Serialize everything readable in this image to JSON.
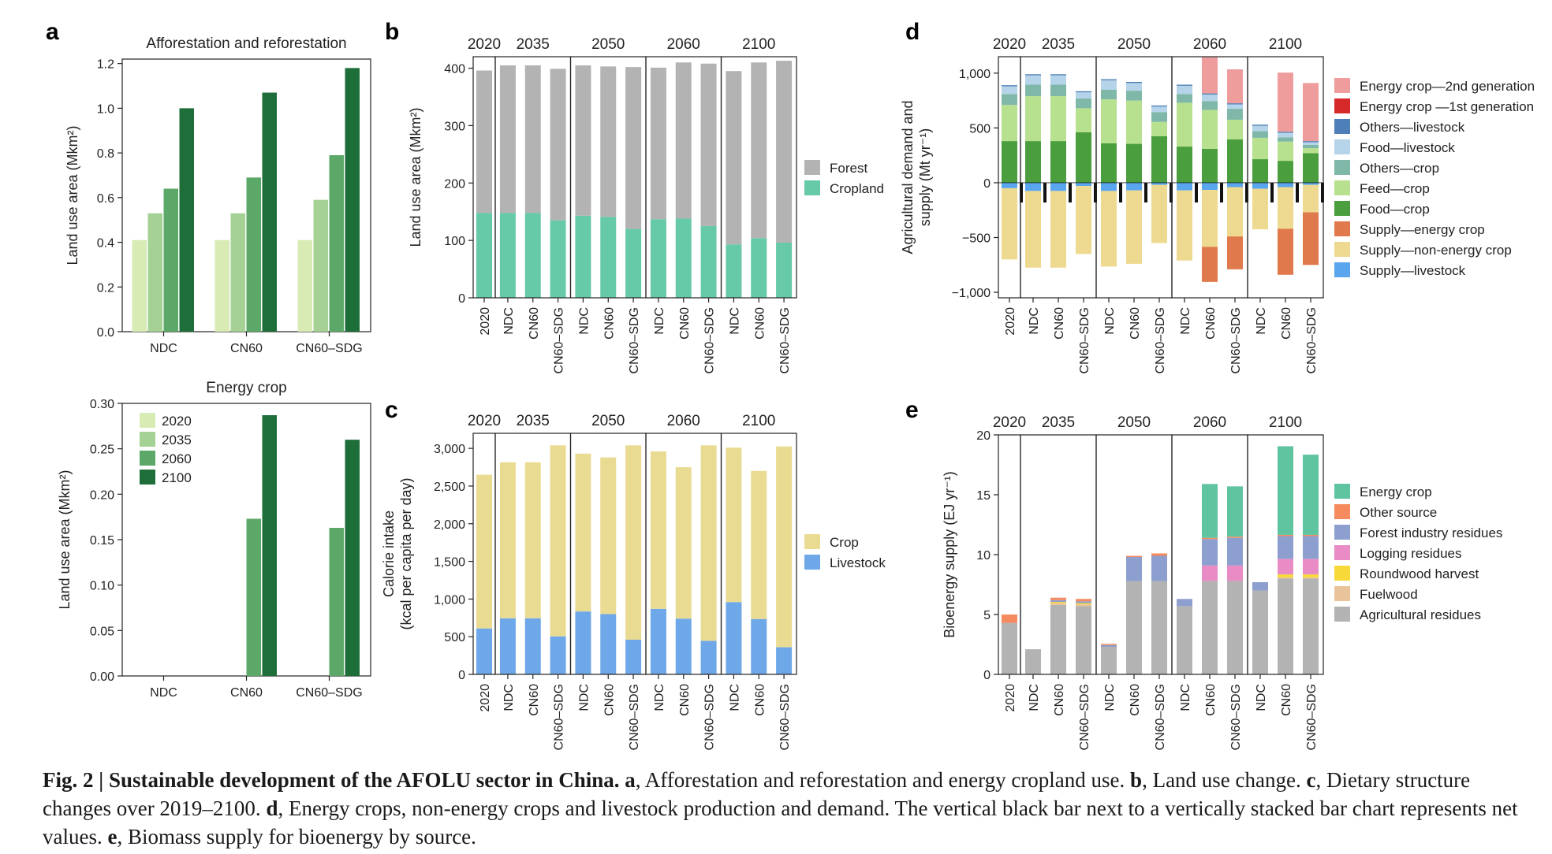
{
  "caption": {
    "head": "Fig. 2 | Sustainable development of the AFOLU sector in China.",
    "body": [
      {
        "b": "a",
        "t": ", Afforestation and reforestation and energy cropland use. "
      },
      {
        "b": "b",
        "t": ", Land use change. "
      },
      {
        "b": "c",
        "t": ", Dietary structure changes over 2019–2100. "
      },
      {
        "b": "d",
        "t": ", Energy crops, non-energy crops and livestock production and demand. The vertical black bar next to a vertically stacked bar chart represents net values. "
      },
      {
        "b": "e",
        "t": ", Biomass supply for bioenergy by source."
      }
    ]
  },
  "panel_letters": [
    "a",
    "b",
    "c",
    "d",
    "e"
  ],
  "chart_data": [
    {
      "id": "a1",
      "type": "bar",
      "title": "Afforestation and reforestation",
      "ylabel": "Land use area (Mkm²)",
      "ylim": [
        0,
        1.22
      ],
      "yticks": [
        0,
        0.2,
        0.4,
        0.6,
        0.8,
        1.0,
        1.2
      ],
      "decimals": 1,
      "categories": [
        "NDC",
        "CN60",
        "CN60–SDG"
      ],
      "series": [
        {
          "name": "2020",
          "color": "#d8ebb5",
          "values": [
            0.41,
            0.41,
            0.41
          ]
        },
        {
          "name": "2035",
          "color": "#a5d294",
          "values": [
            0.53,
            0.53,
            0.59
          ]
        },
        {
          "name": "2060",
          "color": "#5ca868",
          "values": [
            0.64,
            0.69,
            0.79
          ]
        },
        {
          "name": "2100",
          "color": "#1e6e3a",
          "values": [
            1.0,
            1.07,
            1.18
          ]
        }
      ]
    },
    {
      "id": "a2",
      "type": "bar",
      "title": "Energy crop",
      "ylabel": "Land use area (Mkm²)",
      "ylim": [
        0,
        0.3
      ],
      "yticks": [
        0,
        0.05,
        0.1,
        0.15,
        0.2,
        0.25,
        0.3
      ],
      "decimals": 2,
      "categories": [
        "NDC",
        "CN60",
        "CN60–SDG"
      ],
      "legend_position": "top-left",
      "series": [
        {
          "name": "2020",
          "color": "#d8ebb5",
          "values": [
            0,
            0,
            0
          ]
        },
        {
          "name": "2035",
          "color": "#a5d294",
          "values": [
            0,
            0,
            0
          ]
        },
        {
          "name": "2060",
          "color": "#5ca868",
          "values": [
            0,
            0.173,
            0.163
          ]
        },
        {
          "name": "2100",
          "color": "#1e6e3a",
          "values": [
            0,
            0.287,
            0.26
          ]
        }
      ]
    },
    {
      "id": "b",
      "type": "bar",
      "stacked": true,
      "ylabel": "Land use area (Mkm²)",
      "ylim": [
        0,
        420
      ],
      "yticks": [
        0,
        100,
        200,
        300,
        400
      ],
      "groups": [
        "2020",
        "2035",
        "2050",
        "2060",
        "2100"
      ],
      "categories": [
        "2020",
        "NDC",
        "CN60",
        "CN60–SDG",
        "NDC",
        "CN60",
        "CN60–SDG",
        "NDC",
        "CN60",
        "CN60–SDG",
        "NDC",
        "CN60",
        "CN60–SDG"
      ],
      "legend_position": "right",
      "series": [
        {
          "name": "Cropland",
          "color": "#66c9a8",
          "values": [
            148,
            148,
            148,
            135,
            143,
            141,
            120,
            137,
            138,
            125,
            93,
            104,
            96
          ]
        },
        {
          "name": "Forest",
          "color": "#b3b3b3",
          "values": [
            248,
            257,
            257,
            264,
            262,
            262,
            282,
            264,
            272,
            283,
            302,
            306,
            317
          ]
        }
      ],
      "legend_order": [
        "Forest",
        "Cropland"
      ]
    },
    {
      "id": "c",
      "type": "bar",
      "stacked": true,
      "ylabel": "Calorie intake",
      "ylabel2": "(kcal per capita per day)",
      "ylim": [
        0,
        3200
      ],
      "yticks": [
        0,
        500,
        1000,
        1500,
        2000,
        2500,
        3000
      ],
      "groups": [
        "2020",
        "2035",
        "2050",
        "2060",
        "2100"
      ],
      "categories": [
        "2020",
        "NDC",
        "CN60",
        "CN60–SDG",
        "NDC",
        "CN60",
        "CN60–SDG",
        "NDC",
        "CN60",
        "CN60–SDG",
        "NDC",
        "CN60",
        "CN60–SDG"
      ],
      "legend_position": "right",
      "series": [
        {
          "name": "Livestock",
          "color": "#6ea8e8",
          "values": [
            610,
            745,
            745,
            505,
            835,
            800,
            460,
            870,
            740,
            445,
            960,
            735,
            360
          ]
        },
        {
          "name": "Crop",
          "color": "#eadb93",
          "values": [
            2040,
            2070,
            2070,
            2535,
            2095,
            2080,
            2580,
            2090,
            2010,
            2595,
            2050,
            1965,
            2665
          ]
        }
      ],
      "legend_order": [
        "Crop",
        "Livestock"
      ]
    },
    {
      "id": "d",
      "type": "bar",
      "stacked": true,
      "ylabel": "Agricultural demand and",
      "ylabel2": "supply (Mt yr⁻¹)",
      "ylim": [
        -1050,
        1150
      ],
      "yticks": [
        -1000,
        -500,
        0,
        500,
        1000
      ],
      "groups": [
        "2020",
        "2035",
        "2050",
        "2060",
        "2100"
      ],
      "categories": [
        "2020",
        "NDC",
        "CN60",
        "CN60–SDG",
        "NDC",
        "CN60",
        "CN60–SDG",
        "NDC",
        "CN60",
        "CN60–SDG",
        "NDC",
        "CN60",
        "CN60–SDG"
      ],
      "legend_position": "right",
      "series": [
        {
          "name": "Food—crop",
          "color": "#4a9e3d",
          "values": [
            380,
            380,
            380,
            460,
            360,
            355,
            425,
            330,
            310,
            395,
            215,
            200,
            270
          ]
        },
        {
          "name": "Feed—crop",
          "color": "#b7e08f",
          "values": [
            330,
            410,
            410,
            220,
            400,
            395,
            130,
            400,
            355,
            180,
            195,
            175,
            45
          ]
        },
        {
          "name": "Others—crop",
          "color": "#7fb8a9",
          "values": [
            100,
            105,
            105,
            90,
            90,
            90,
            90,
            80,
            80,
            100,
            60,
            40,
            30
          ]
        },
        {
          "name": "Food—livestock",
          "color": "#b5d4ea",
          "values": [
            70,
            85,
            85,
            55,
            85,
            70,
            50,
            75,
            60,
            40,
            50,
            40,
            25
          ]
        },
        {
          "name": "Others—livestock",
          "color": "#4f7fb8",
          "values": [
            10,
            10,
            10,
            10,
            10,
            10,
            10,
            10,
            10,
            10,
            10,
            10,
            10
          ]
        },
        {
          "name": "Energy crop —1st generation",
          "color": "#d62a2a",
          "values": [
            0,
            0,
            0,
            0,
            0,
            0,
            0,
            0,
            0,
            0,
            0,
            0,
            0
          ]
        },
        {
          "name": "Energy crop—2nd generation",
          "color": "#ee9c9c",
          "values": [
            0,
            0,
            0,
            0,
            0,
            0,
            0,
            0,
            330,
            310,
            0,
            540,
            530
          ]
        },
        {
          "name": "Supply—livestock",
          "color": "#5aa6ee",
          "values": [
            -50,
            -75,
            -75,
            -30,
            -75,
            -70,
            -20,
            -70,
            -65,
            -40,
            -55,
            -40,
            -20
          ]
        },
        {
          "name": "Supply—non-energy crop",
          "color": "#eed990",
          "values": [
            -650,
            -700,
            -700,
            -620,
            -690,
            -670,
            -530,
            -640,
            -520,
            -450,
            -370,
            -380,
            -250
          ]
        },
        {
          "name": "Supply—energy crop",
          "color": "#e0794c",
          "values": [
            0,
            0,
            0,
            0,
            0,
            0,
            0,
            0,
            -320,
            -300,
            0,
            -420,
            -480
          ]
        }
      ],
      "net": [
        -180,
        -180,
        -180,
        -180,
        -180,
        -180,
        -180,
        -180,
        -180,
        -180,
        -180,
        -180,
        -180
      ],
      "legend_order": [
        "Energy crop—2nd generation",
        "Energy crop —1st generation",
        "Others—livestock",
        "Food—livestock",
        "Others—crop",
        "Feed—crop",
        "Food—crop",
        "Supply—energy crop",
        "Supply—non-energy crop",
        "Supply—livestock"
      ]
    },
    {
      "id": "e",
      "type": "bar",
      "stacked": true,
      "ylabel": "Bioenergy supply (EJ yr⁻¹)",
      "ylim": [
        0,
        20
      ],
      "yticks": [
        0,
        5,
        10,
        15,
        20
      ],
      "groups": [
        "2020",
        "2035",
        "2050",
        "2060",
        "2100"
      ],
      "categories": [
        "2020",
        "NDC",
        "CN60",
        "CN60–SDG",
        "NDC",
        "CN60",
        "CN60–SDG",
        "NDC",
        "CN60",
        "CN60–SDG",
        "NDC",
        "CN60",
        "CN60–SDG"
      ],
      "legend_position": "right",
      "series": [
        {
          "name": "Agricultural residues",
          "color": "#b3b3b3",
          "values": [
            4.3,
            2.1,
            5.8,
            5.7,
            2.3,
            7.8,
            7.8,
            5.7,
            7.8,
            7.8,
            7.0,
            8.0,
            8.0
          ]
        },
        {
          "name": "Fuelwood",
          "color": "#e9c39a",
          "values": [
            0,
            0,
            0.15,
            0.15,
            0,
            0,
            0,
            0,
            0,
            0,
            0,
            0.1,
            0.1
          ]
        },
        {
          "name": "Roundwood harvest",
          "color": "#f7d93a",
          "values": [
            0,
            0,
            0.1,
            0.1,
            0,
            0,
            0,
            0,
            0,
            0,
            0,
            0.25,
            0.25
          ]
        },
        {
          "name": "Logging residues",
          "color": "#e98bc4",
          "values": [
            0,
            0,
            0,
            0,
            0,
            0,
            0,
            0,
            1.3,
            1.3,
            0,
            1.3,
            1.3
          ]
        },
        {
          "name": "Forest industry residues",
          "color": "#8c9fcf",
          "values": [
            0,
            0,
            0.15,
            0.15,
            0.15,
            2.0,
            2.1,
            0.6,
            2.2,
            2.3,
            0.7,
            1.9,
            1.9
          ]
        },
        {
          "name": "Other source",
          "color": "#f58a5e",
          "values": [
            0.7,
            0,
            0.2,
            0.2,
            0.1,
            0.1,
            0.2,
            0,
            0.1,
            0.1,
            0,
            0.1,
            0.1
          ]
        },
        {
          "name": "Energy crop",
          "color": "#5fc4a0",
          "values": [
            0,
            0,
            0,
            0,
            0,
            0,
            0,
            0,
            4.5,
            4.2,
            0,
            7.4,
            6.7
          ]
        }
      ],
      "legend_order": [
        "Energy crop",
        "Other source",
        "Forest industry residues",
        "Logging residues",
        "Roundwood harvest",
        "Fuelwood",
        "Agricultural residues"
      ]
    }
  ]
}
